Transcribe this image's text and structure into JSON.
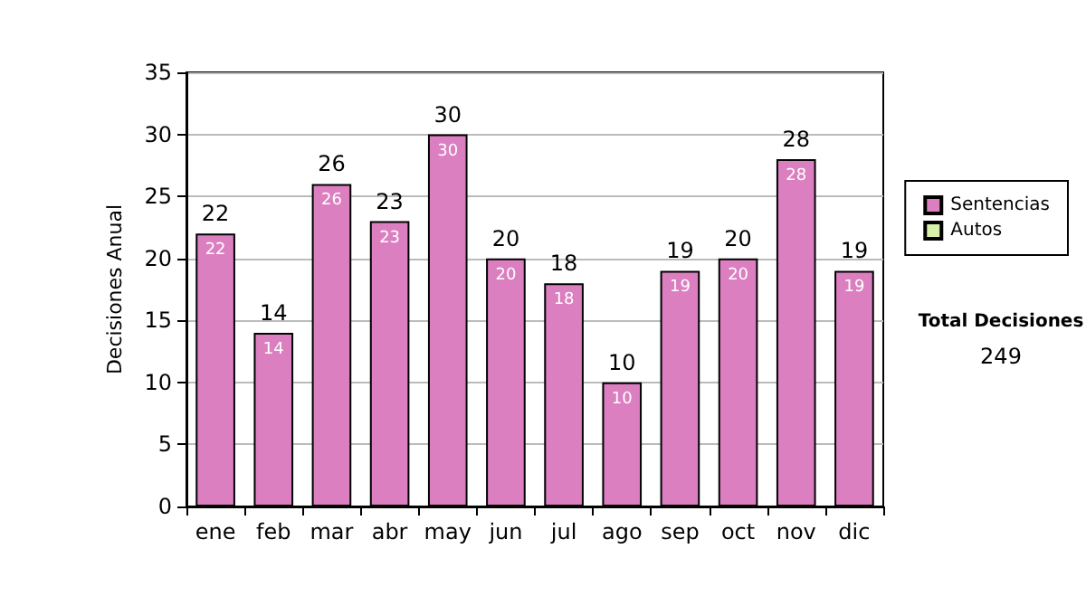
{
  "chart_data": {
    "type": "bar",
    "ylabel": "Decisiones Anual",
    "categories": [
      "ene",
      "feb",
      "mar",
      "abr",
      "may",
      "jun",
      "jul",
      "ago",
      "sep",
      "oct",
      "nov",
      "dic"
    ],
    "series": [
      {
        "name": "Sentencias",
        "color": "#db7fc0",
        "values": [
          22,
          14,
          26,
          23,
          30,
          20,
          18,
          10,
          19,
          20,
          28,
          19
        ],
        "value_labels": [
          "22",
          "14",
          "26",
          "23",
          "30",
          "20",
          "18",
          "10",
          "19",
          "20",
          "28",
          "19"
        ]
      },
      {
        "name": "Autos",
        "color": "#d8f0a8",
        "values": [
          0,
          0,
          0,
          0,
          0,
          0,
          0,
          0,
          0,
          0,
          0,
          0
        ]
      }
    ],
    "stacked": true,
    "totals": [
      "22",
      "14",
      "26",
      "23",
      "30",
      "20",
      "18",
      "10",
      "19",
      "20",
      "28",
      "19"
    ],
    "ylim": [
      0,
      35
    ],
    "yticks": [
      0,
      5,
      10,
      15,
      20,
      25,
      30,
      35
    ],
    "grid": "y",
    "legend": "right",
    "annotations": [
      "Total Decisiones",
      "249"
    ]
  }
}
